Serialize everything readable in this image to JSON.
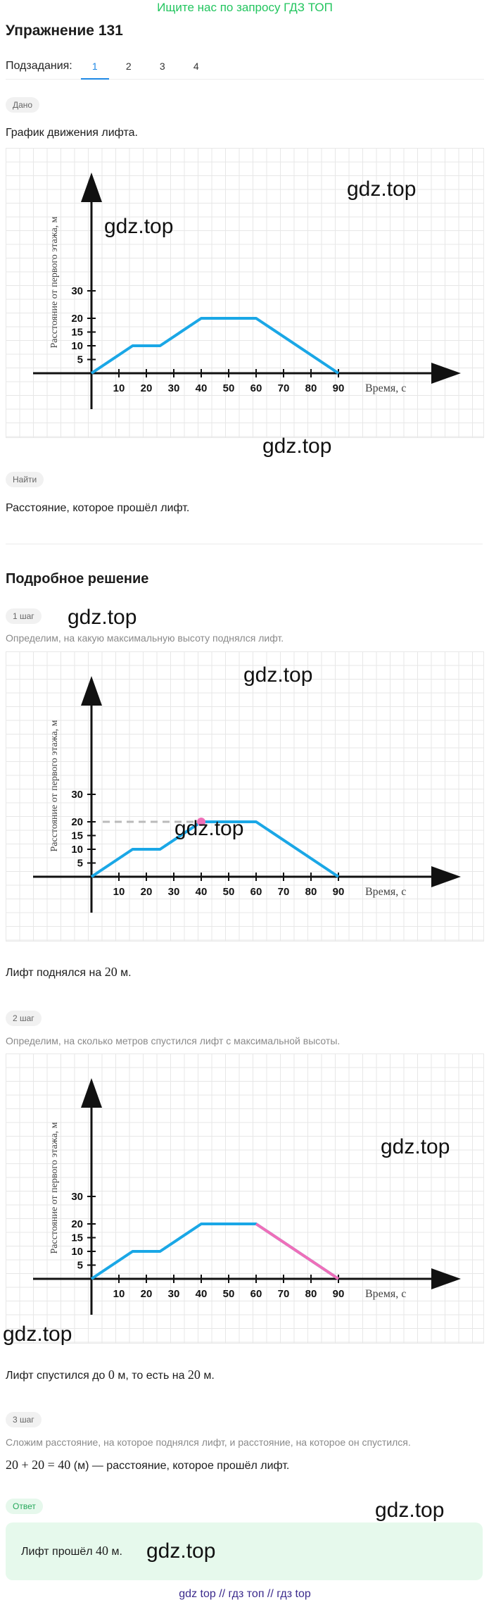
{
  "banner": "Ищите нас по запросу ГДЗ ТОП",
  "title": "Упражнение 131",
  "subtasks": {
    "label": "Подзадания:",
    "items": [
      "1",
      "2",
      "3",
      "4"
    ],
    "active": "1"
  },
  "given": {
    "pill": "Дано",
    "text": "График движения лифта."
  },
  "find": {
    "pill": "Найти",
    "text": "Расстояние, которое прошёл лифт."
  },
  "solution_title": "Подробное решение",
  "steps": [
    {
      "pill": "1 шаг",
      "text": "Определим, на какую максимальную высоту поднялся лифт.",
      "result_a": "Лифт поднялся на ",
      "result_m": "20",
      "result_b": " м."
    },
    {
      "pill": "2 шаг",
      "text": "Определим, на сколько метров спустился лифт с максимальной высоты.",
      "result_a": "Лифт спустился до ",
      "result_m1": "0",
      "result_b": " м, то есть на ",
      "result_m2": "20",
      "result_c": " м."
    },
    {
      "pill": "3 шаг",
      "text": "Сложим расстояние, на которое поднялся лифт, и расстояние, на которое он спустился.",
      "formula": "20 + 20 = 40",
      "formula_rest": " (м) — расстояние, которое прошёл лифт."
    }
  ],
  "answer": {
    "pill": "Ответ",
    "a": "Лифт прошёл ",
    "m": "40",
    "b": " м."
  },
  "watermark": "gdz.top",
  "footer": "gdz top  //  гдз топ  //  гдз top",
  "chart_data": {
    "type": "line",
    "xlabel": "Время, с",
    "ylabel": "Расстояние от первого этажа, м",
    "x_ticks": [
      "10",
      "20",
      "30",
      "40",
      "50",
      "60",
      "70",
      "80",
      "90"
    ],
    "y_ticks": [
      "5",
      "10",
      "15",
      "20",
      "30"
    ],
    "series": [
      {
        "x": [
          0,
          15,
          25,
          40,
          60,
          90
        ],
        "y": [
          0,
          10,
          10,
          20,
          20,
          0
        ]
      }
    ],
    "highlight_point": {
      "x": 40,
      "y": 20
    },
    "highlight_segment": {
      "x": [
        60,
        90
      ],
      "y": [
        20,
        0
      ]
    }
  },
  "colors": {
    "line": "#1aa7e6",
    "highlight": "#ef6fb9",
    "dash": "#bbbbbb",
    "accent": "#1e88e5"
  }
}
